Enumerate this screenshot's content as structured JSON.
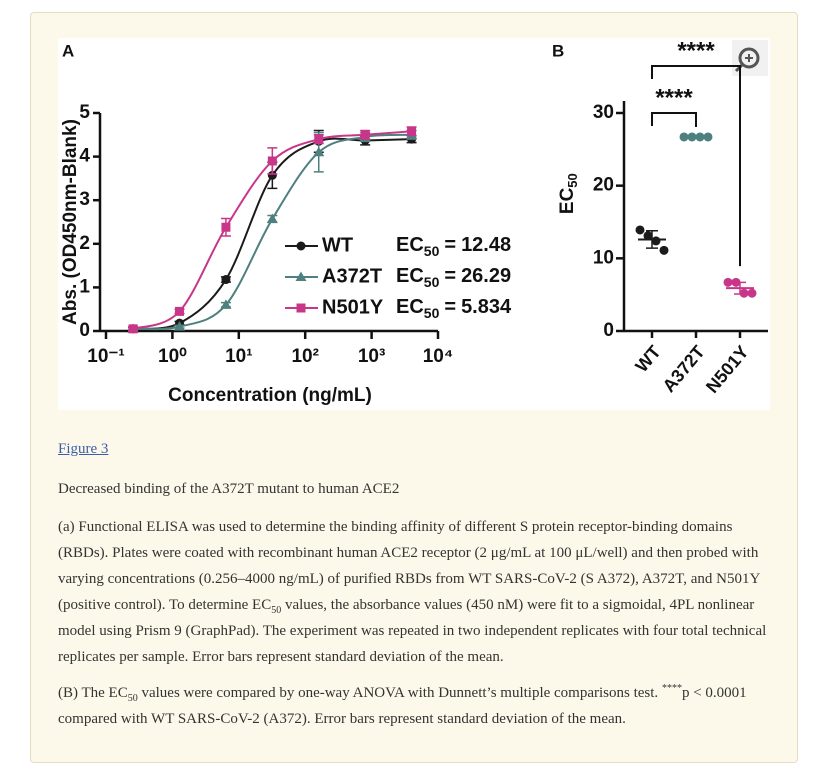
{
  "chart_data": [
    {
      "type": "line",
      "panel": "A",
      "xlabel": "Concentration (ng/mL)",
      "ylabel": "Abs. (OD450nm-Blank)",
      "log_x": true,
      "x": [
        0.256,
        1.28,
        6.4,
        32,
        160,
        800,
        4000
      ],
      "xlim": [
        0.1,
        10000
      ],
      "xticks": [
        {
          "value": 0.1,
          "label": "10⁻¹"
        },
        {
          "value": 1,
          "label": "10⁰"
        },
        {
          "value": 10,
          "label": "10¹"
        },
        {
          "value": 100,
          "label": "10²"
        },
        {
          "value": 1000,
          "label": "10³"
        },
        {
          "value": 10000,
          "label": "10⁴"
        }
      ],
      "ylim": [
        0,
        5
      ],
      "yticks": [
        0,
        1,
        2,
        3,
        4,
        5
      ],
      "series": [
        {
          "name": "WT",
          "color": "#1b1b1b",
          "marker": "circle",
          "ec50_label": [
            "EC",
            "50",
            "="
          ],
          "ec50": 12.48,
          "values": [
            0.05,
            0.18,
            1.18,
            3.57,
            4.35,
            4.37,
            4.4
          ],
          "errors": [
            0.03,
            0.04,
            0.06,
            0.3,
            0.25,
            0.1,
            0.08
          ]
        },
        {
          "name": "A372T",
          "color": "#4f8080",
          "marker": "triangle",
          "ec50_label": [
            "EC",
            "50",
            "="
          ],
          "ec50": 26.29,
          "values": [
            0.05,
            0.1,
            0.6,
            2.57,
            4.1,
            4.45,
            4.5
          ],
          "errors": [
            0.03,
            0.03,
            0.05,
            0.08,
            0.45,
            0.1,
            0.1
          ]
        },
        {
          "name": "N501Y",
          "color": "#c8368a",
          "marker": "square",
          "ec50_label": [
            "EC",
            "50",
            "="
          ],
          "ec50": 5.834,
          "values": [
            0.05,
            0.45,
            2.38,
            3.9,
            4.4,
            4.5,
            4.58
          ],
          "errors": [
            0.05,
            0.05,
            0.2,
            0.3,
            0.1,
            0.1,
            0.1
          ]
        }
      ]
    },
    {
      "type": "dot",
      "panel": "B",
      "ylabel": [
        "EC",
        "50"
      ],
      "categories": [
        "WT",
        "A372T",
        "N501Y"
      ],
      "colors": [
        "#1b1b1b",
        "#4f8080",
        "#c8368a"
      ],
      "points": [
        [
          13.9,
          13.1,
          12.4,
          11.1
        ],
        [
          26.7,
          26.7,
          26.7,
          26.7
        ],
        [
          6.7,
          6.7,
          5.2,
          5.2
        ]
      ],
      "means": [
        12.6,
        26.7,
        5.9
      ],
      "sd": [
        1.2,
        0.1,
        0.8
      ],
      "ylim": [
        0,
        30
      ],
      "yticks": [
        0,
        10,
        20,
        30
      ],
      "comparisons": [
        {
          "label": "****"
        },
        {
          "label": "****"
        }
      ]
    }
  ],
  "caption": {
    "link": "Figure 3",
    "title": "Decreased binding of the A372T mutant to human ACE2",
    "paragraphs": [
      [
        "(a) Functional ELISA was used to determine the binding affinity of different S protein receptor-binding domains (RBDs). Plates were coated with recombinant human ACE2 receptor (2 μg/mL at 100 μL/well) and then probed with varying concentrations (0.256–4000 ng/mL) of purified RBDs from WT SARS-CoV-2 (S A372), A372T, and N501Y (positive control). To determine EC",
        "50",
        " values, the absorbance values (450 nM) were fit to a sigmoidal, 4PL nonlinear model using Prism 9 (GraphPad). The experiment was repeated in two independent replicates with four total technical replicates per sample. Error bars represent standard deviation of the mean."
      ],
      [
        "(B) The EC",
        "50",
        " values were compared by one-way ANOVA with Dunnett’s multiple comparisons test. ",
        "****",
        "p < 0.0001 compared with WT SARS-CoV-2 (A372). Error bars represent standard deviation of the mean."
      ]
    ]
  }
}
